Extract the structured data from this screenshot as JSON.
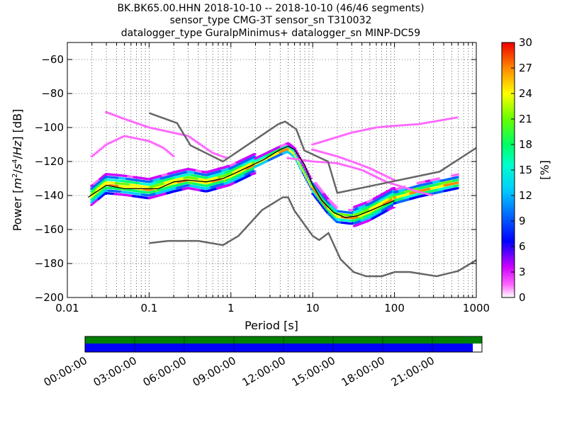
{
  "header": {
    "title_line1": "BK.BK65.00.HHN   2018-10-10 -- 2018-10-10  (46/46 segments)",
    "title_line2": "sensor_type CMG-3T sensor_sn T310032",
    "title_line3": "datalogger_type GuralpMinimus+ datalogger_sn MINP-DC59"
  },
  "chart_data": {
    "type": "heatmap",
    "xlabel": "Period [s]",
    "ylabel": "Power [m²/s⁴/Hz] [dB]",
    "xscale": "log",
    "xlim": [
      0.01,
      1000
    ],
    "ylim": [
      -200,
      -50
    ],
    "x_ticks": [
      0.01,
      0.1,
      1,
      10,
      100,
      1000
    ],
    "x_tick_labels": [
      "0.01",
      "0.1",
      "1",
      "10",
      "100",
      "1000"
    ],
    "y_ticks": [
      -200,
      -180,
      -160,
      -140,
      -120,
      -100,
      -80,
      -60
    ],
    "y_tick_labels": [
      "−200",
      "−180",
      "−160",
      "−140",
      "−120",
      "−100",
      "−80",
      "−60"
    ],
    "grid": true,
    "colorbar": {
      "label": "[%]",
      "range": [
        0,
        30
      ],
      "ticks": [
        0,
        3,
        6,
        9,
        12,
        15,
        18,
        21,
        24,
        27,
        30
      ],
      "tick_labels": [
        "0",
        "3",
        "6",
        "9",
        "12",
        "15",
        "18",
        "21",
        "24",
        "27",
        "30"
      ]
    },
    "noise_models": {
      "high": {
        "x": [
          0.1,
          0.22,
          0.32,
          0.8,
          3.8,
          4.6,
          6.3,
          7.9,
          15.4,
          20,
          354.8,
          1000
        ],
        "y": [
          -91.5,
          -97.4,
          -110.5,
          -120,
          -98,
          -96.5,
          -101,
          -113.5,
          -120,
          -138.5,
          -126,
          -112
        ]
      },
      "low": {
        "x": [
          0.1,
          0.17,
          0.4,
          0.8,
          1.24,
          2.4,
          4.3,
          5.0,
          6.0,
          10.0,
          12.0,
          15.6,
          21.9,
          31.6,
          45,
          70,
          101,
          154,
          328,
          600,
          1000
        ],
        "y": [
          -168,
          -166.7,
          -166.7,
          -169.2,
          -163.7,
          -148.6,
          -141.1,
          -141.1,
          -149,
          -163.8,
          -166.2,
          -162.1,
          -177.5,
          -185,
          -187.5,
          -187.5,
          -185,
          -185,
          -187.5,
          -184.4,
          -178
        ]
      }
    },
    "median_curve": {
      "x": [
        0.018,
        0.03,
        0.05,
        0.1,
        0.13,
        0.2,
        0.3,
        0.5,
        0.8,
        1.0,
        1.5,
        2.5,
        4.0,
        5.0,
        6.0,
        8.0,
        10,
        13,
        18,
        25,
        35,
        50,
        70,
        100
      ],
      "y": [
        -141,
        -134,
        -136,
        -136,
        -136,
        -132,
        -131,
        -132,
        -130,
        -128,
        -124,
        -119,
        -113,
        -111,
        -113,
        -122,
        -134,
        -143,
        -150,
        -153,
        -152,
        -149,
        -146,
        -143
      ]
    },
    "density_bands": [
      {
        "name": "main",
        "x": [
          0.02,
          0.03,
          0.05,
          0.1,
          0.2,
          0.3,
          0.5,
          1.0,
          2.0,
          4.0,
          5.0,
          6.0,
          10,
          15,
          20,
          30,
          50,
          100,
          200,
          600
        ],
        "y": [
          -140,
          -133,
          -134,
          -136,
          -132,
          -130,
          -132,
          -128,
          -121,
          -114,
          -112,
          -115,
          -135,
          -146,
          -152,
          -153,
          -149,
          -141,
          -137,
          -132
        ],
        "percent": 15
      }
    ],
    "outlier_traces": [
      {
        "x": [
          0.03,
          0.05,
          0.1,
          0.3,
          0.6,
          0.9
        ],
        "y": [
          -91,
          -95,
          -100,
          -105,
          -115,
          -118
        ],
        "percent": 2
      },
      {
        "x": [
          0.02,
          0.03,
          0.05,
          0.1,
          0.15,
          0.2
        ],
        "y": [
          -117,
          -110,
          -105,
          -108,
          -112,
          -117
        ],
        "percent": 2
      },
      {
        "x": [
          10,
          30,
          60,
          100,
          200,
          600
        ],
        "y": [
          -110,
          -103,
          -100,
          -99,
          -98,
          -94
        ],
        "percent": 2
      },
      {
        "x": [
          5,
          10,
          20,
          40,
          80,
          200,
          300
        ],
        "y": [
          -118,
          -120,
          -121,
          -125,
          -132,
          -138,
          -140
        ],
        "percent": 2
      },
      {
        "x": [
          10,
          20,
          30,
          50,
          100
        ],
        "y": [
          -113,
          -117,
          -120,
          -124,
          -131
        ],
        "percent": 2
      }
    ]
  },
  "timeline": {
    "labels": [
      "00:00:00",
      "03:00:00",
      "06:00:00",
      "09:00:00",
      "12:00:00",
      "15:00:00",
      "18:00:00",
      "21:00:00"
    ],
    "bar_colors": [
      "#008000",
      "#0000ff"
    ],
    "coverage_fraction": 0.977
  }
}
